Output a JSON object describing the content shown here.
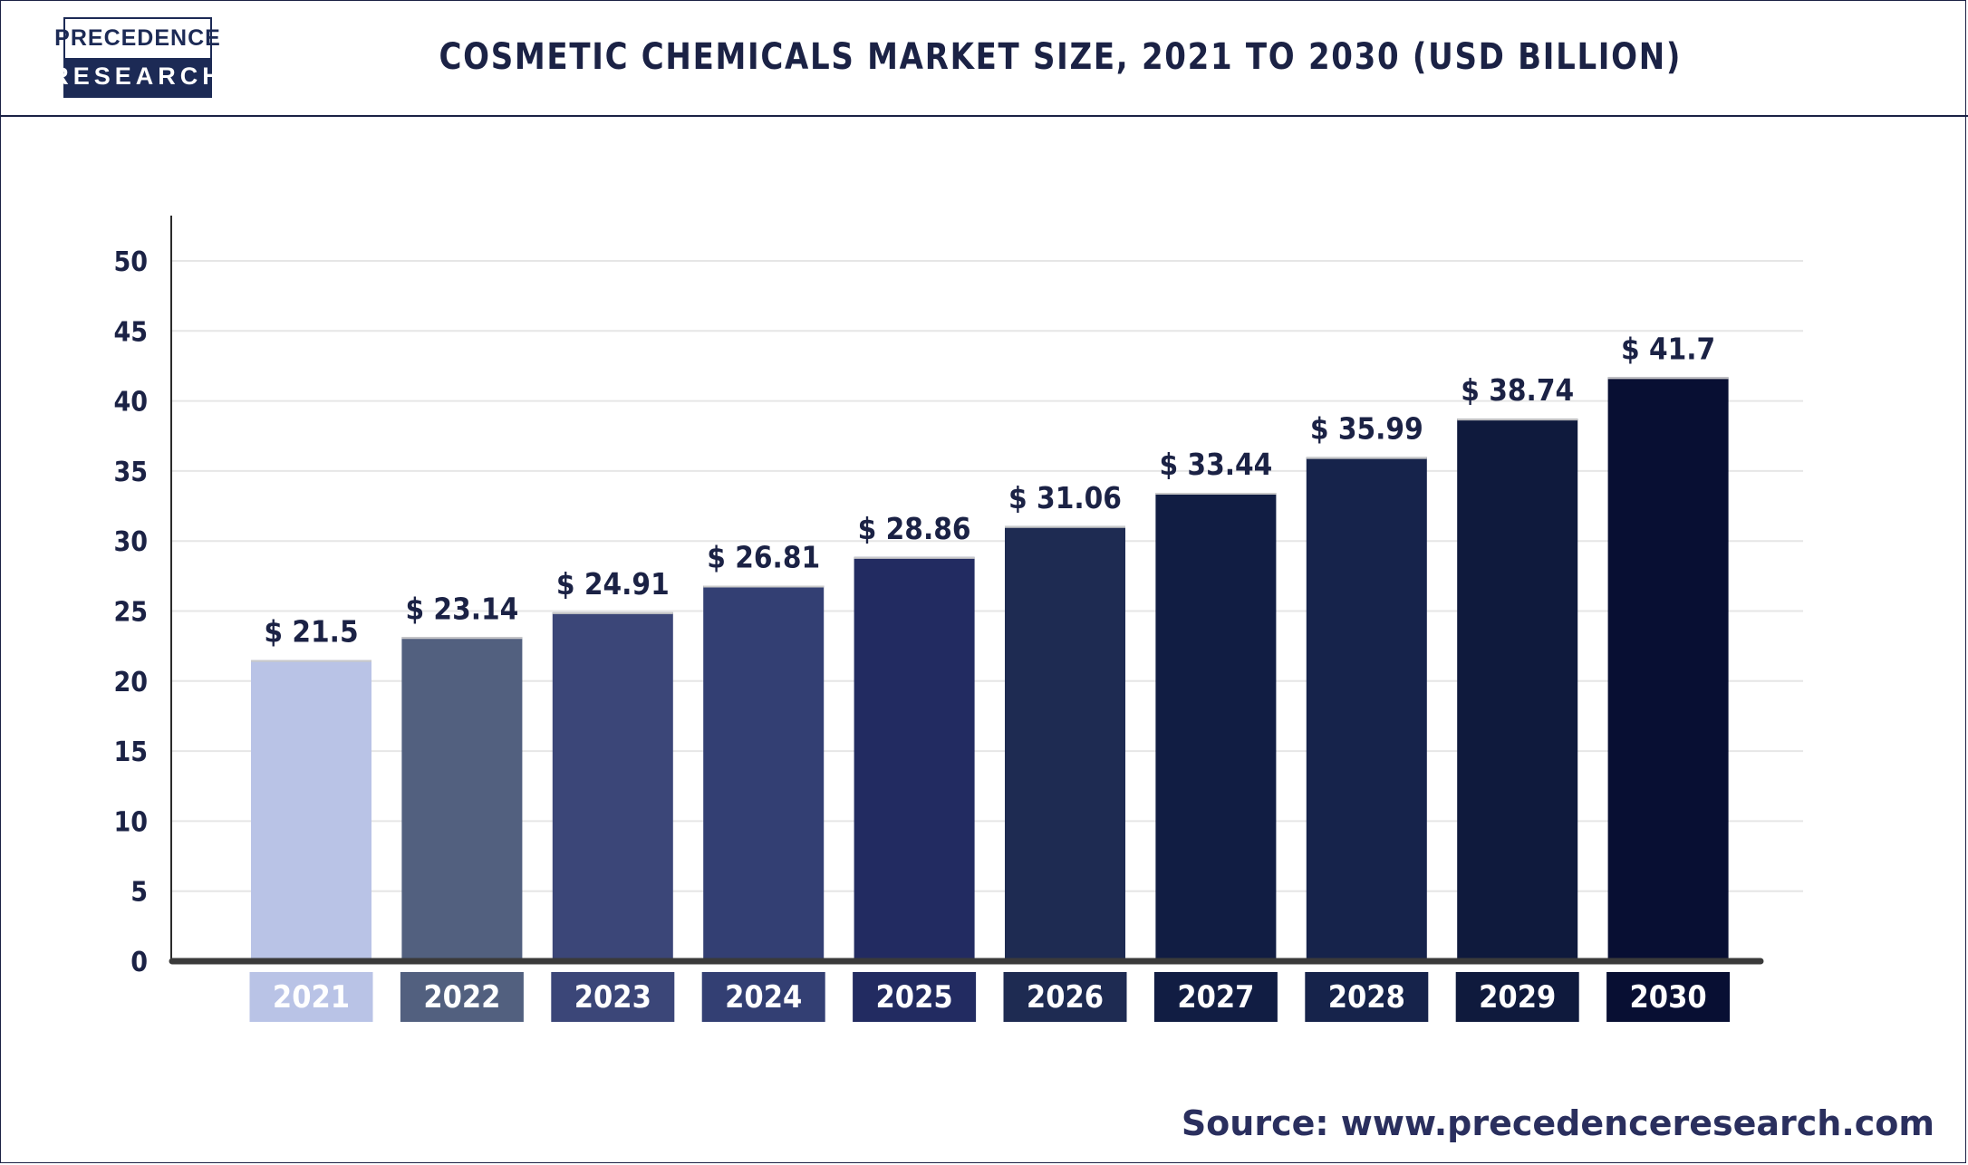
{
  "brand": {
    "line1": "PRECEDENCE",
    "line2": "RESEARCH"
  },
  "title": "COSMETIC CHEMICALS MARKET SIZE, 2021 TO 2030 (USD BILLION)",
  "source": "Source: www.precedenceresearch.com",
  "chart_data": {
    "type": "bar",
    "categories": [
      "2021",
      "2022",
      "2023",
      "2024",
      "2025",
      "2026",
      "2027",
      "2028",
      "2029",
      "2030"
    ],
    "values": [
      21.5,
      23.14,
      24.91,
      26.81,
      28.86,
      31.06,
      33.44,
      35.99,
      38.74,
      41.7
    ],
    "value_labels": [
      "$ 21.5",
      "$ 23.14",
      "$ 24.91",
      "$ 26.81",
      "$ 28.86",
      "$ 31.06",
      "$ 33.44",
      "$ 35.99",
      "$ 38.74",
      "$ 41.7"
    ],
    "bar_colors": [
      "#b9c3e6",
      "#52607f",
      "#3b4678",
      "#333f73",
      "#222b61",
      "#1e2b52",
      "#111d43",
      "#16234b",
      "#0f1a3d",
      "#080f33"
    ],
    "yticks": [
      "0",
      "5",
      "10",
      "15",
      "20",
      "25",
      "30",
      "35",
      "40",
      "45",
      "50"
    ],
    "ylim": [
      0,
      50
    ],
    "grid": true,
    "xlabel": "",
    "ylabel": ""
  }
}
